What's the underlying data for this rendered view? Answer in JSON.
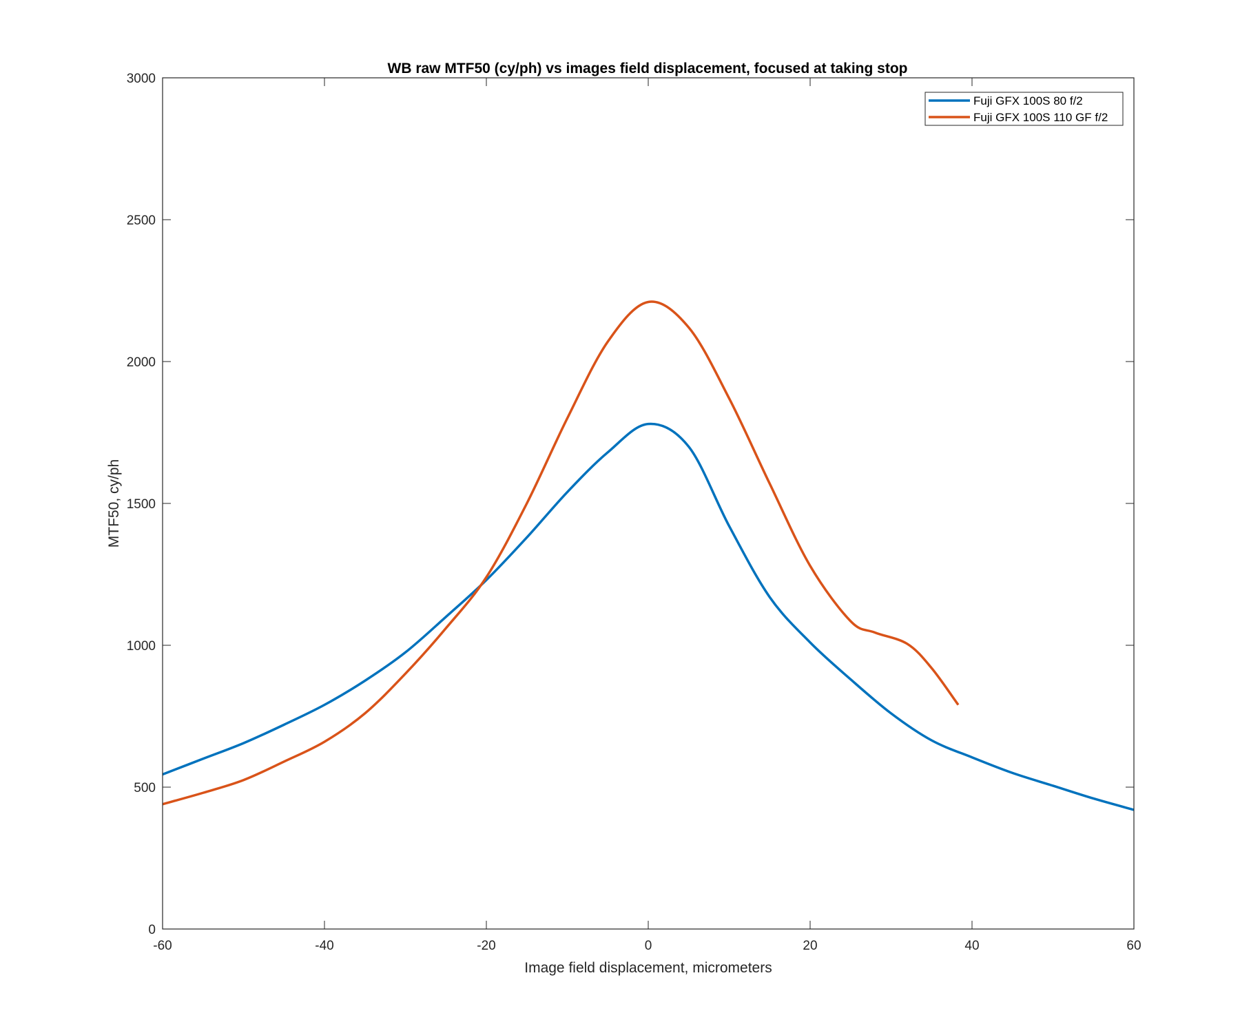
{
  "chart_data": {
    "type": "line",
    "title": "WB raw MTF50 (cy/ph) vs images field displacement, focused at taking stop",
    "xlabel": "Image field displacement, micrometers",
    "ylabel": "MTF50, cy/ph",
    "xlim": [
      -60,
      60
    ],
    "ylim": [
      0,
      3000
    ],
    "xticks": [
      -60,
      -40,
      -20,
      0,
      20,
      40,
      60
    ],
    "yticks": [
      0,
      500,
      1000,
      1500,
      2000,
      2500,
      3000
    ],
    "grid": false,
    "legend_position": "top-right",
    "series": [
      {
        "name": "Fuji GFX 100S 80 f/2",
        "color": "#0072BD",
        "x": [
          -60,
          -55,
          -50,
          -45,
          -40,
          -35,
          -30,
          -25,
          -20,
          -15,
          -10,
          -5,
          0,
          5,
          10,
          15,
          20,
          25,
          30,
          35,
          40,
          45,
          50,
          55,
          60
        ],
        "y": [
          545,
          600,
          655,
          720,
          790,
          875,
          975,
          1100,
          1230,
          1380,
          1540,
          1680,
          1780,
          1700,
          1420,
          1170,
          1010,
          880,
          760,
          665,
          605,
          550,
          505,
          460,
          420
        ]
      },
      {
        "name": "Fuji GFX 100S 110 GF f/2",
        "color": "#D95319",
        "x": [
          -60,
          -55,
          -50,
          -45,
          -40,
          -35,
          -30,
          -25,
          -20,
          -15,
          -10,
          -5,
          0,
          5,
          10,
          15,
          20,
          25,
          28,
          32,
          35,
          38.3
        ],
        "y": [
          440,
          480,
          525,
          590,
          660,
          760,
          900,
          1060,
          1240,
          1500,
          1800,
          2070,
          2210,
          2120,
          1870,
          1570,
          1280,
          1085,
          1045,
          1005,
          920,
          790
        ]
      }
    ]
  }
}
